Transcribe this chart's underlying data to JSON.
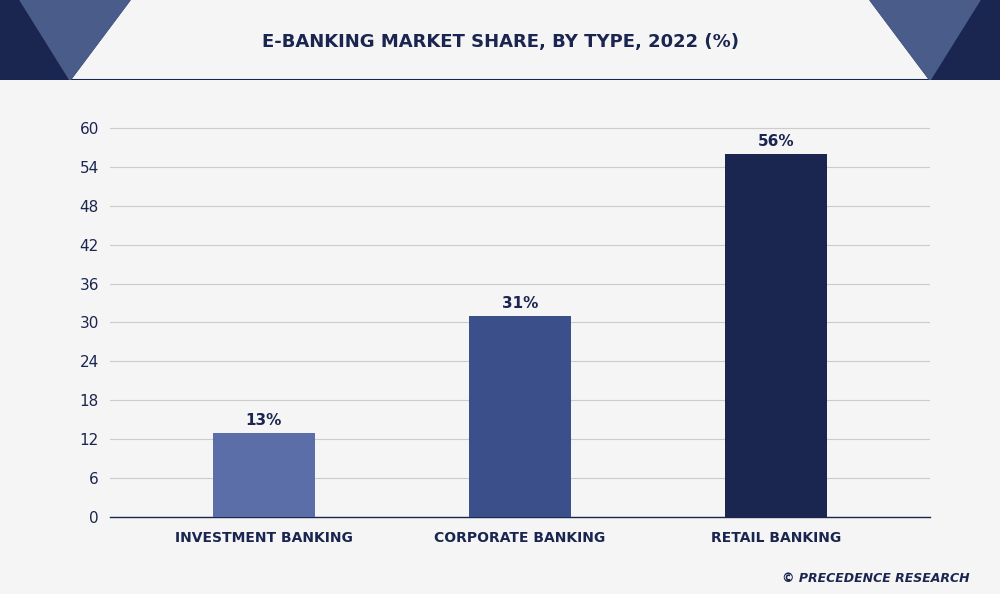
{
  "title": "E-BANKING MARKET SHARE, BY TYPE, 2022 (%)",
  "categories": [
    "INVESTMENT BANKING",
    "CORPORATE BANKING",
    "RETAIL BANKING"
  ],
  "values": [
    13,
    31,
    56
  ],
  "labels": [
    "13%",
    "31%",
    "56%"
  ],
  "bar_colors": [
    "#5b6ea8",
    "#3b4f8a",
    "#1a2550"
  ],
  "background_color": "#f0f0f0",
  "plot_bg_color": "#f5f5f5",
  "header_bg_color": "#ffffff",
  "title_color": "#1a2550",
  "tick_color": "#1a2550",
  "label_color": "#1a2550",
  "grid_color": "#cccccc",
  "ylim": [
    0,
    66
  ],
  "yticks": [
    0,
    6,
    12,
    18,
    24,
    30,
    36,
    42,
    48,
    54,
    60
  ],
  "title_fontsize": 13,
  "label_fontsize": 10,
  "tick_fontsize": 11,
  "bar_width": 0.4,
  "corner_dark": "#1a2550",
  "corner_mid": "#4a5c8a",
  "watermark": "© PRECEDENCE RESEARCH",
  "watermark_color": "#1a2550",
  "border_color": "#1a2550"
}
